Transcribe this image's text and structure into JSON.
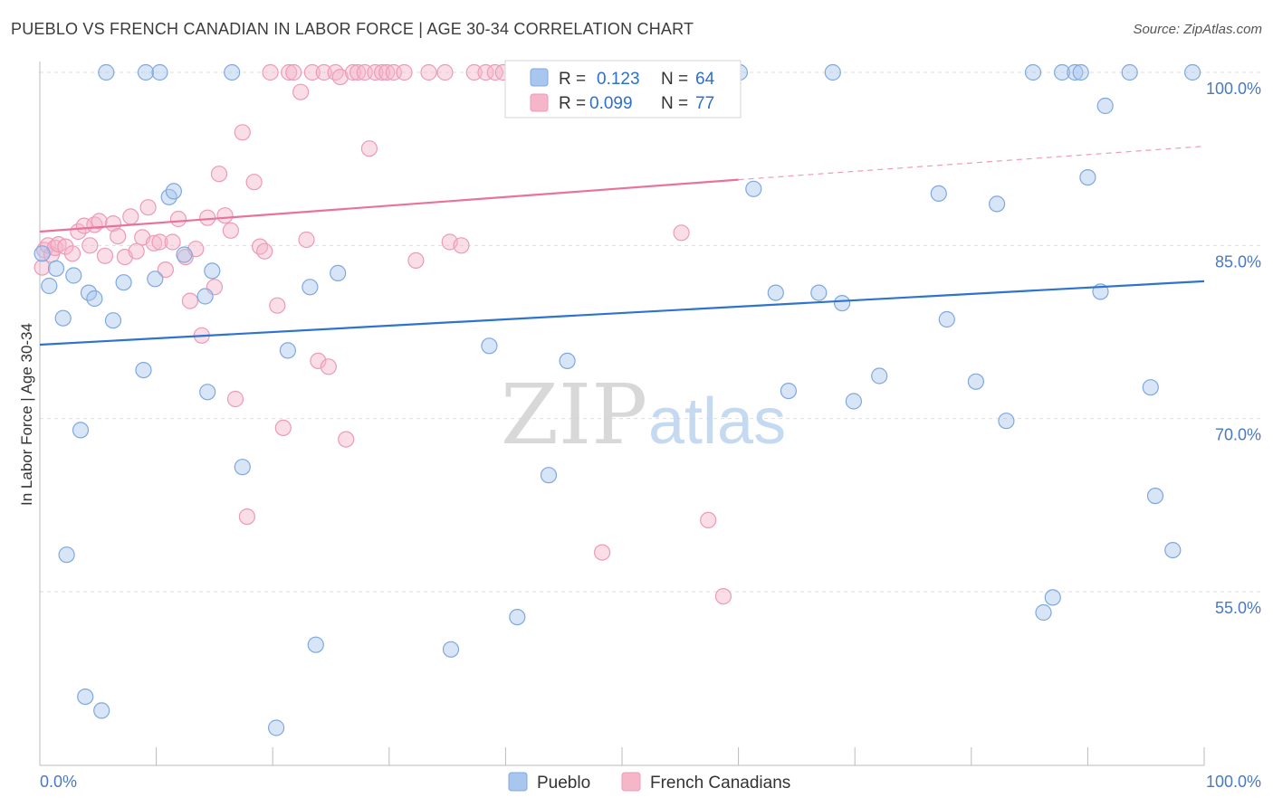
{
  "header": {
    "title": "PUEBLO VS FRENCH CANADIAN IN LABOR FORCE | AGE 30-34 CORRELATION CHART",
    "source": "Source: ZipAtlas.com"
  },
  "watermark": {
    "part1": "ZIP",
    "part2": "atlas"
  },
  "chart_data": {
    "type": "scatter",
    "title": "PUEBLO VS FRENCH CANADIAN IN LABOR FORCE | AGE 30-34 CORRELATION CHART",
    "xlabel": "",
    "ylabel": "In Labor Force | Age 30-34",
    "xlim": [
      0,
      100
    ],
    "ylim": [
      40,
      102
    ],
    "x_tick_labels": [
      "0.0%",
      "100.0%"
    ],
    "y_ticks": [
      55,
      70,
      85,
      100
    ],
    "y_tick_labels": [
      "55.0%",
      "70.0%",
      "85.0%",
      "100.0%"
    ],
    "grid": true,
    "legend_position": "top-center",
    "legend": {
      "r_label": "R =",
      "n_label": "N =",
      "entries": [
        {
          "name": "Pueblo",
          "r": "0.123",
          "n": "64"
        },
        {
          "name": "French Canadians",
          "r": "0.099",
          "n": "77"
        }
      ]
    },
    "series": [
      {
        "name": "Pueblo",
        "color": "#a9c6ee",
        "stroke": "#7ea8e0",
        "trend": {
          "x": [
            0,
            100
          ],
          "y": [
            76.4,
            81.9
          ],
          "color": "#2f74cc"
        },
        "points": [
          [
            0.2,
            84.3
          ],
          [
            0.8,
            81.5
          ],
          [
            1.4,
            83.0
          ],
          [
            2.0,
            78.7
          ],
          [
            2.3,
            58.2
          ],
          [
            2.9,
            82.4
          ],
          [
            3.5,
            69.0
          ],
          [
            3.9,
            45.9
          ],
          [
            4.2,
            80.9
          ],
          [
            4.7,
            80.4
          ],
          [
            5.3,
            44.7
          ],
          [
            5.7,
            100
          ],
          [
            6.3,
            78.5
          ],
          [
            7.2,
            81.8
          ],
          [
            8.9,
            74.2
          ],
          [
            9.1,
            100
          ],
          [
            9.9,
            82.1
          ],
          [
            10.3,
            100
          ],
          [
            11.1,
            89.2
          ],
          [
            11.5,
            89.7
          ],
          [
            12.4,
            84.2
          ],
          [
            14.2,
            80.6
          ],
          [
            14.4,
            72.3
          ],
          [
            14.8,
            82.8
          ],
          [
            16.5,
            100
          ],
          [
            17.4,
            65.8
          ],
          [
            20.3,
            43.2
          ],
          [
            21.3,
            75.9
          ],
          [
            23.2,
            81.4
          ],
          [
            23.7,
            50.4
          ],
          [
            25.6,
            82.6
          ],
          [
            35.3,
            50.0
          ],
          [
            38.6,
            76.3
          ],
          [
            41.0,
            52.8
          ],
          [
            43.7,
            65.1
          ],
          [
            45.3,
            75.0
          ],
          [
            60.1,
            100
          ],
          [
            61.3,
            89.9
          ],
          [
            63.2,
            80.9
          ],
          [
            64.3,
            72.4
          ],
          [
            66.9,
            80.9
          ],
          [
            68.1,
            100
          ],
          [
            68.9,
            80.0
          ],
          [
            69.9,
            71.5
          ],
          [
            72.1,
            73.7
          ],
          [
            77.2,
            89.5
          ],
          [
            77.9,
            78.6
          ],
          [
            80.4,
            73.2
          ],
          [
            82.2,
            88.6
          ],
          [
            83.0,
            69.8
          ],
          [
            85.3,
            100
          ],
          [
            86.2,
            53.2
          ],
          [
            87.0,
            54.5
          ],
          [
            87.8,
            100
          ],
          [
            88.9,
            100
          ],
          [
            89.4,
            100
          ],
          [
            90.0,
            90.9
          ],
          [
            91.1,
            81.0
          ],
          [
            91.5,
            97.1
          ],
          [
            93.6,
            100
          ],
          [
            95.4,
            72.7
          ],
          [
            95.8,
            63.3
          ],
          [
            97.3,
            58.6
          ],
          [
            99.0,
            100
          ]
        ]
      },
      {
        "name": "French Canadians",
        "color": "#f5b6ca",
        "stroke": "#ee9ab5",
        "trend": {
          "x": [
            0,
            60
          ],
          "y": [
            86.2,
            90.7
          ],
          "dash_x": [
            60,
            100
          ],
          "dash_y": [
            90.7,
            93.6
          ],
          "color": "#e8739a"
        },
        "points": [
          [
            0.2,
            83.1
          ],
          [
            0.4,
            84.6
          ],
          [
            0.7,
            85.0
          ],
          [
            1.0,
            84.2
          ],
          [
            1.3,
            84.8
          ],
          [
            1.6,
            85.1
          ],
          [
            2.2,
            84.9
          ],
          [
            2.8,
            84.3
          ],
          [
            3.3,
            86.2
          ],
          [
            3.8,
            86.7
          ],
          [
            4.3,
            85.0
          ],
          [
            4.7,
            86.8
          ],
          [
            5.1,
            87.1
          ],
          [
            5.6,
            84.1
          ],
          [
            6.3,
            86.9
          ],
          [
            6.7,
            85.8
          ],
          [
            7.3,
            84.0
          ],
          [
            7.8,
            87.5
          ],
          [
            8.3,
            84.5
          ],
          [
            8.8,
            85.7
          ],
          [
            9.3,
            88.3
          ],
          [
            9.8,
            85.2
          ],
          [
            10.3,
            85.3
          ],
          [
            10.8,
            82.9
          ],
          [
            11.4,
            85.3
          ],
          [
            11.9,
            87.3
          ],
          [
            12.5,
            84.0
          ],
          [
            12.9,
            80.2
          ],
          [
            13.4,
            84.7
          ],
          [
            13.9,
            77.2
          ],
          [
            14.4,
            87.4
          ],
          [
            15.0,
            81.4
          ],
          [
            15.4,
            91.2
          ],
          [
            15.9,
            87.6
          ],
          [
            16.4,
            86.3
          ],
          [
            16.8,
            71.7
          ],
          [
            17.4,
            94.8
          ],
          [
            17.8,
            61.5
          ],
          [
            18.4,
            90.5
          ],
          [
            18.9,
            84.9
          ],
          [
            19.3,
            84.5
          ],
          [
            19.8,
            100
          ],
          [
            20.4,
            79.8
          ],
          [
            20.9,
            69.2
          ],
          [
            21.4,
            100
          ],
          [
            21.8,
            100
          ],
          [
            22.4,
            98.3
          ],
          [
            22.9,
            85.5
          ],
          [
            23.4,
            100
          ],
          [
            23.9,
            75.0
          ],
          [
            24.4,
            100
          ],
          [
            24.8,
            74.5
          ],
          [
            25.4,
            100
          ],
          [
            25.8,
            99.6
          ],
          [
            26.3,
            68.2
          ],
          [
            26.9,
            100
          ],
          [
            27.3,
            100
          ],
          [
            27.9,
            100
          ],
          [
            28.3,
            93.4
          ],
          [
            28.8,
            100
          ],
          [
            29.4,
            100
          ],
          [
            29.8,
            100
          ],
          [
            30.4,
            100
          ],
          [
            31.3,
            100
          ],
          [
            32.3,
            83.7
          ],
          [
            33.4,
            100
          ],
          [
            34.8,
            100
          ],
          [
            35.2,
            85.3
          ],
          [
            36.2,
            85.0
          ],
          [
            37.3,
            100
          ],
          [
            38.3,
            100
          ],
          [
            39.1,
            100
          ],
          [
            39.8,
            100
          ],
          [
            48.3,
            58.4
          ],
          [
            55.1,
            86.1
          ],
          [
            57.4,
            61.2
          ],
          [
            58.7,
            54.6
          ]
        ]
      }
    ]
  }
}
